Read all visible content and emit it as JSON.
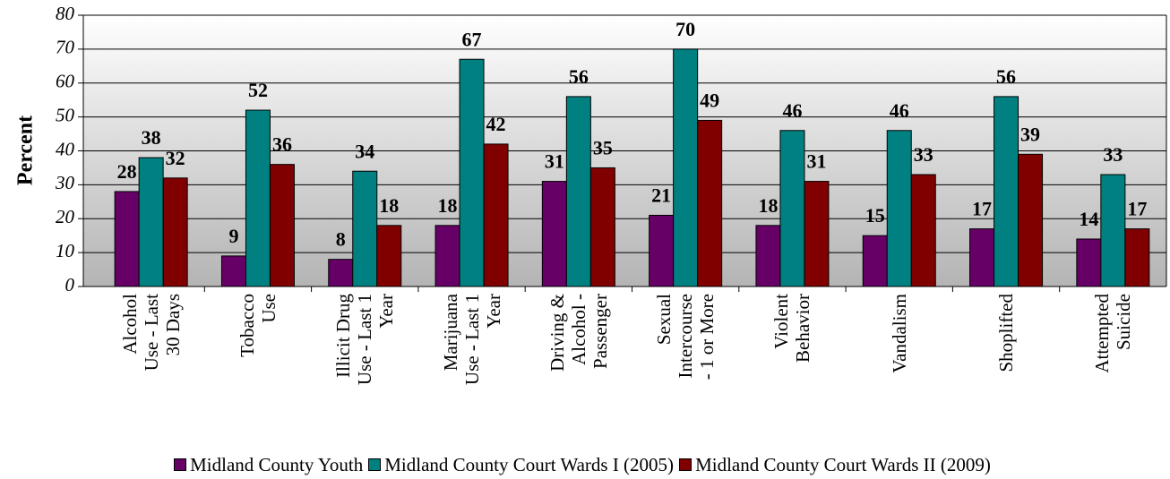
{
  "chart_data": {
    "type": "bar",
    "y_label": "Percent",
    "categories": [
      [
        "Alcohol",
        "Use - Last",
        "30 Days"
      ],
      [
        "Tobacco",
        "Use"
      ],
      [
        "Illicit Drug",
        "Use - Last 1",
        "Year"
      ],
      [
        "Marijuana",
        "Use - Last 1",
        "Year"
      ],
      [
        "Driving &",
        "Alcohol -",
        "Passenger"
      ],
      [
        "Sexual",
        "Intercourse",
        "- 1 or More"
      ],
      [
        "Violent",
        "Behavior"
      ],
      [
        "Vandalism"
      ],
      [
        "Shoplifted"
      ],
      [
        "Attempted",
        "Suicide"
      ]
    ],
    "series": [
      {
        "name": "Midland County Youth",
        "color": "#660066",
        "values": [
          28,
          9,
          8,
          18,
          31,
          21,
          18,
          15,
          17,
          14
        ]
      },
      {
        "name": "Midland County Court Wards I (2005)",
        "color": "#008080",
        "values": [
          38,
          52,
          34,
          67,
          56,
          70,
          46,
          46,
          56,
          33
        ]
      },
      {
        "name": "Midland County Court Wards II (2009)",
        "color": "#800000",
        "values": [
          32,
          36,
          18,
          42,
          35,
          49,
          31,
          33,
          39,
          17
        ]
      }
    ],
    "ylim": [
      0,
      80
    ],
    "yticks": [
      0,
      10,
      20,
      30,
      40,
      50,
      60,
      70,
      80
    ],
    "grid": true
  }
}
